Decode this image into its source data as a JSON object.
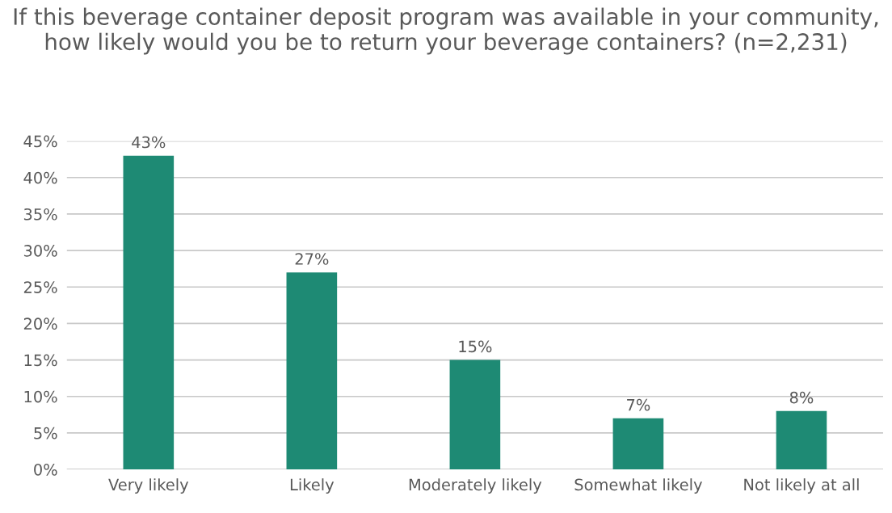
{
  "chart_data": {
    "type": "bar",
    "title": "If this beverage container deposit program was available in your community, how likely would you be to return your beverage containers? (n=2,231)",
    "categories": [
      "Very likely",
      "Likely",
      "Moderately likely",
      "Somewhat likely",
      "Not likely at all"
    ],
    "values": [
      43,
      27,
      15,
      7,
      8
    ],
    "value_labels": [
      "43%",
      "27%",
      "15%",
      "7%",
      "8%"
    ],
    "color": "#1e8a74",
    "ylim": [
      0,
      45
    ],
    "yticks": [
      {
        "value": 0,
        "label": "0%"
      },
      {
        "value": 5,
        "label": "5%"
      },
      {
        "value": 10,
        "label": "10%"
      },
      {
        "value": 15,
        "label": "15%"
      },
      {
        "value": 20,
        "label": "20%"
      },
      {
        "value": 25,
        "label": "25%"
      },
      {
        "value": 30,
        "label": "30%"
      },
      {
        "value": 35,
        "label": "35%"
      },
      {
        "value": 40,
        "label": "40%"
      },
      {
        "value": 45,
        "label": "45%"
      }
    ],
    "grid": "y"
  }
}
